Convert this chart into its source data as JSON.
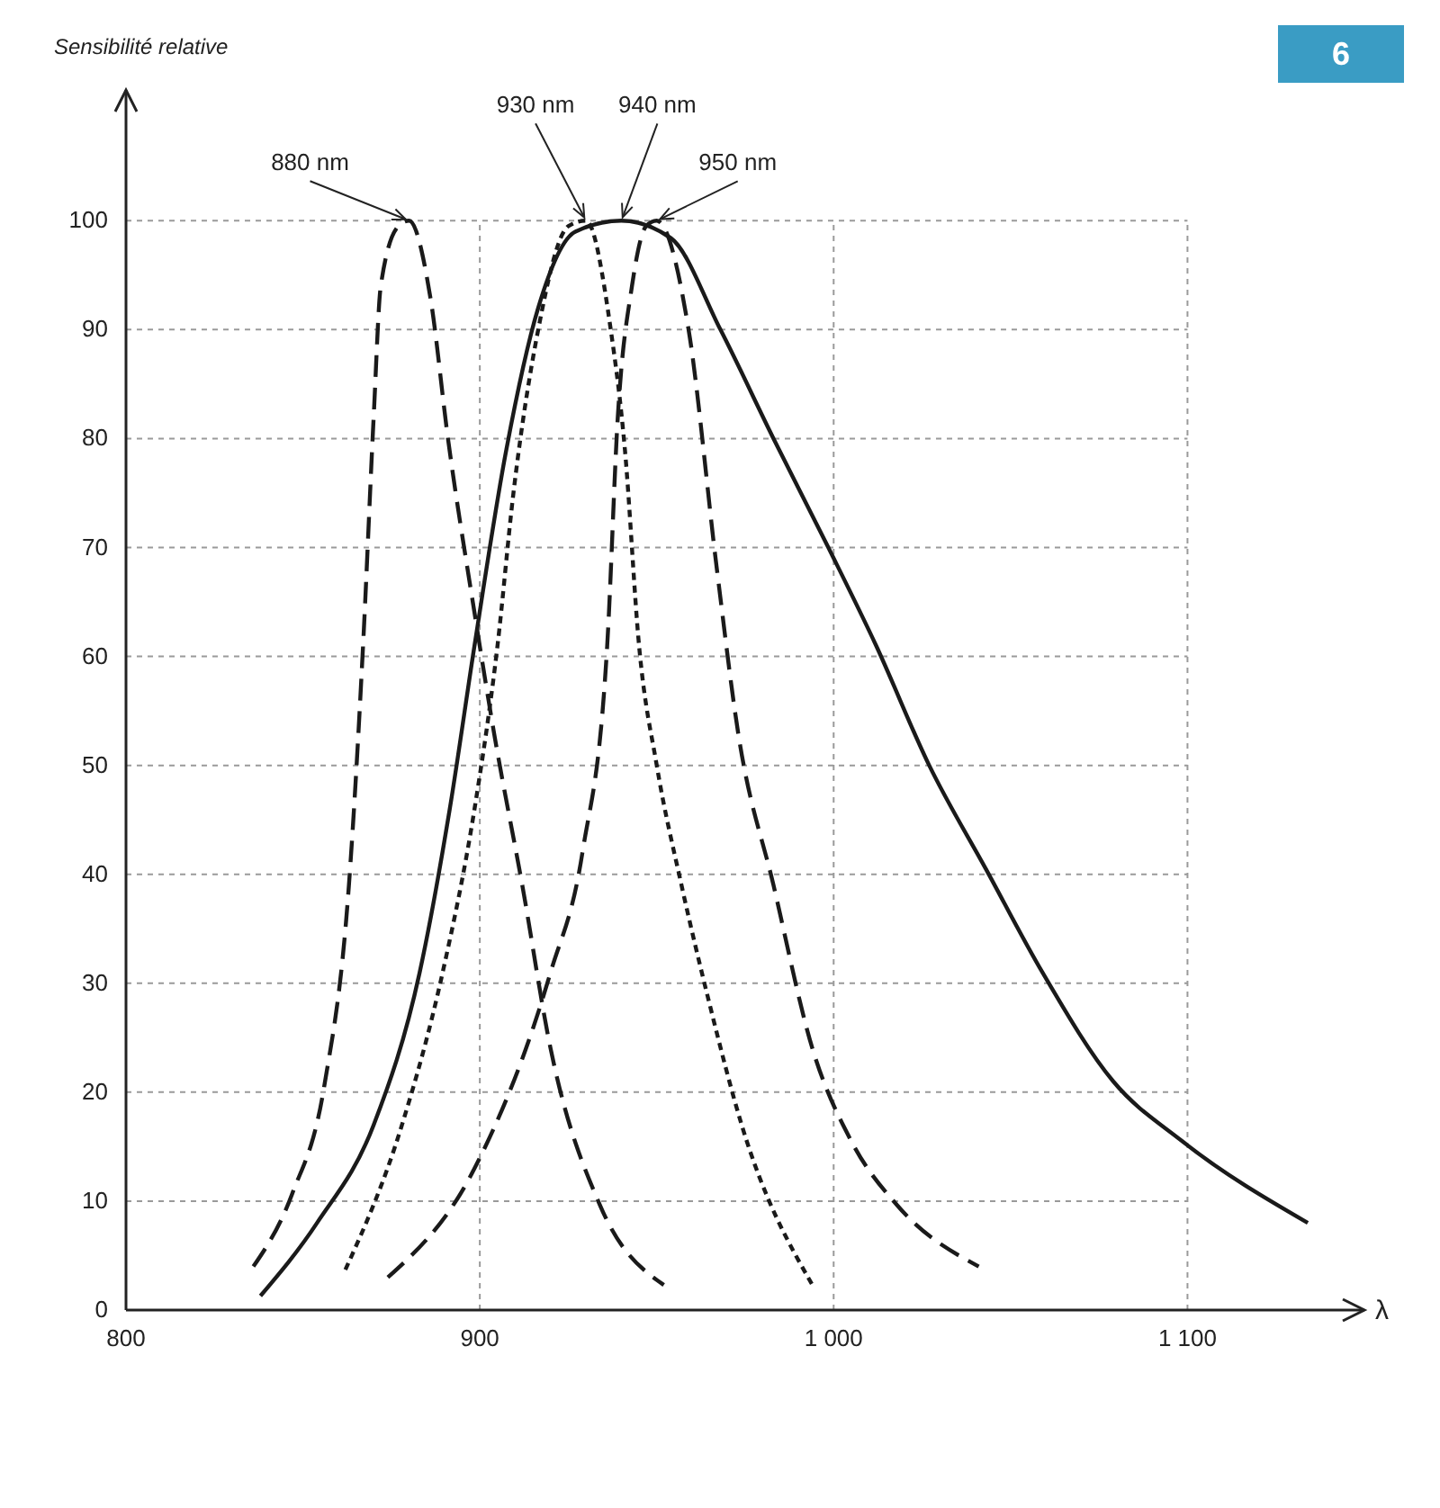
{
  "chart_data": {
    "type": "line",
    "ylabel": "Sensibilité relative",
    "xlabel": "λ",
    "xlim": [
      800,
      1150
    ],
    "xticks": [
      800,
      900,
      {
        "value": 1000,
        "label": "1 000"
      },
      {
        "value": 1100,
        "label": "1 100"
      }
    ],
    "ylim": [
      0,
      112
    ],
    "yticks": [
      0,
      10,
      20,
      30,
      40,
      50,
      60,
      70,
      80,
      90,
      100
    ],
    "grid": true,
    "series": [
      {
        "color": "#1a1a1a",
        "line_style": "dashed",
        "x": [
          836,
          847,
          856,
          863,
          867,
          870,
          872,
          877,
          880,
          886,
          891,
          898.5,
          904,
          912,
          920,
          934,
          952
        ],
        "values": [
          4,
          10.7,
          20.5,
          39,
          61,
          82,
          94,
          99.5,
          100,
          93,
          80,
          64,
          53,
          39,
          24,
          9.6,
          2.3
        ]
      },
      {
        "color": "#1a1a1a",
        "line_style": "solid",
        "x": [
          838,
          854,
          870,
          883,
          891.5,
          898.5,
          907.5,
          916.5,
          927,
          940,
          954,
          968,
          983,
          998.5,
          1012,
          1027,
          1043,
          1059,
          1079,
          1098.5,
          1134
        ],
        "values": [
          1.3,
          8,
          17,
          31,
          46,
          61,
          79,
          92,
          99,
          100,
          98.4,
          90,
          80,
          70,
          61,
          50,
          40.5,
          31,
          21,
          15.5,
          8
        ]
      },
      {
        "color": "#1a1a1a",
        "line_style": "dotted",
        "x": [
          862,
          878,
          889.5,
          898.5,
          905,
          909.5,
          916.5,
          925,
          930,
          937,
          941,
          945,
          950,
          957,
          965,
          974,
          994
        ],
        "values": [
          3.7,
          17,
          31,
          46,
          61,
          75,
          90,
          99.5,
          100,
          90,
          79,
          61,
          50,
          39,
          28,
          17,
          2.3
        ]
      },
      {
        "color": "#1a1a1a",
        "line_style": "dashed",
        "x": [
          874,
          898.5,
          920,
          929,
          936,
          939,
          943,
          947,
          950,
          959,
          967,
          973,
          983,
          994,
          1005,
          1018,
          1041
        ],
        "values": [
          3,
          13,
          31,
          42,
          61,
          82,
          94,
          99.5,
          100,
          90,
          68,
          53,
          39,
          24,
          15.5,
          9.6,
          4
        ]
      }
    ],
    "annotations": [
      {
        "text": "880 nm",
        "x": 880,
        "y": 100
      },
      {
        "text": "930 nm",
        "x": 930,
        "y": 100
      },
      {
        "text": "940 nm",
        "x": 940,
        "y": 100
      },
      {
        "text": "950 nm",
        "x": 950,
        "y": 100
      },
      "6"
    ]
  }
}
